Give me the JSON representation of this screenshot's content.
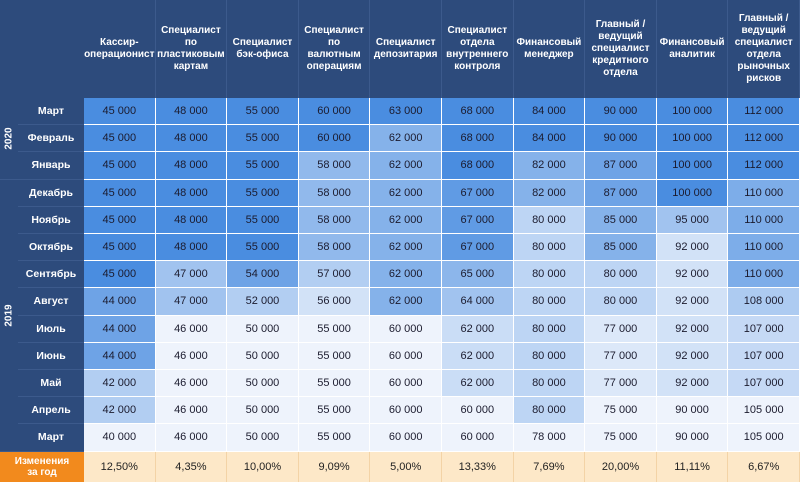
{
  "chart_data": {
    "type": "heatmap",
    "columns": [
      "Кассир-\nоперационист",
      "Специалист\nпо\nпластиковым\nкартам",
      "Специалист\nбэк-офиса",
      "Специалист\nпо валютным\nоперациям",
      "Специалист\nдепозитария",
      "Специалист\nотдела\nвнутреннего\nконтроля",
      "Финансовый\nменеджер",
      "Главный /\nведущий\nспециалист\nкредитного\nотдела",
      "Финансовый\nаналитик",
      "Главный /\nведущий\nспециалист\nотдела\nрыночных\nрисков"
    ],
    "years": [
      {
        "label": "2020",
        "months": [
          "Март",
          "Февраль",
          "Январь"
        ]
      },
      {
        "label": "2019",
        "months": [
          "Декабрь",
          "Ноябрь",
          "Октябрь",
          "Сентябрь",
          "Август",
          "Июль",
          "Июнь",
          "Май",
          "Апрель",
          "Март"
        ]
      }
    ],
    "rows": [
      {
        "month": "Март",
        "values": [
          "45 000",
          "48 000",
          "55 000",
          "60 000",
          "63 000",
          "68 000",
          "84 000",
          "90 000",
          "100 000",
          "112 000"
        ]
      },
      {
        "month": "Февраль",
        "values": [
          "45 000",
          "48 000",
          "55 000",
          "60 000",
          "62 000",
          "68 000",
          "84 000",
          "90 000",
          "100 000",
          "112 000"
        ]
      },
      {
        "month": "Январь",
        "values": [
          "45 000",
          "48 000",
          "55 000",
          "58 000",
          "62 000",
          "68 000",
          "82 000",
          "87 000",
          "100 000",
          "112 000"
        ]
      },
      {
        "month": "Декабрь",
        "values": [
          "45 000",
          "48 000",
          "55 000",
          "58 000",
          "62 000",
          "67 000",
          "82 000",
          "87 000",
          "100 000",
          "110 000"
        ]
      },
      {
        "month": "Ноябрь",
        "values": [
          "45 000",
          "48 000",
          "55 000",
          "58 000",
          "62 000",
          "67 000",
          "80 000",
          "85 000",
          "95 000",
          "110 000"
        ]
      },
      {
        "month": "Октябрь",
        "values": [
          "45 000",
          "48 000",
          "55 000",
          "58 000",
          "62 000",
          "67 000",
          "80 000",
          "85 000",
          "92 000",
          "110 000"
        ]
      },
      {
        "month": "Сентябрь",
        "values": [
          "45 000",
          "47 000",
          "54 000",
          "57 000",
          "62 000",
          "65 000",
          "80 000",
          "80 000",
          "92 000",
          "110 000"
        ]
      },
      {
        "month": "Август",
        "values": [
          "44 000",
          "47 000",
          "52 000",
          "56 000",
          "62 000",
          "64 000",
          "80 000",
          "80 000",
          "92 000",
          "108 000"
        ]
      },
      {
        "month": "Июль",
        "values": [
          "44 000",
          "46 000",
          "50 000",
          "55 000",
          "60 000",
          "62 000",
          "80 000",
          "77 000",
          "92 000",
          "107 000"
        ]
      },
      {
        "month": "Июнь",
        "values": [
          "44 000",
          "46 000",
          "50 000",
          "55 000",
          "60 000",
          "62 000",
          "80 000",
          "77 000",
          "92 000",
          "107 000"
        ]
      },
      {
        "month": "Май",
        "values": [
          "42 000",
          "46 000",
          "50 000",
          "55 000",
          "60 000",
          "62 000",
          "80 000",
          "77 000",
          "92 000",
          "107 000"
        ]
      },
      {
        "month": "Апрель",
        "values": [
          "42 000",
          "46 000",
          "50 000",
          "55 000",
          "60 000",
          "60 000",
          "80 000",
          "75 000",
          "90 000",
          "105 000"
        ]
      },
      {
        "month": "Март",
        "values": [
          "40 000",
          "46 000",
          "50 000",
          "55 000",
          "60 000",
          "60 000",
          "78 000",
          "75 000",
          "90 000",
          "105 000"
        ]
      }
    ],
    "footer": {
      "label": "Изменения\nза год",
      "values": [
        "12,50%",
        "4,35%",
        "10,00%",
        "9,09%",
        "5,00%",
        "13,33%",
        "7,69%",
        "20,00%",
        "11,11%",
        "6,67%"
      ]
    },
    "colors": {
      "header_bg": "#2d4b7c",
      "footer_label_bg": "#f28a1d",
      "footer_bg": "#fde8c8",
      "scale_low": "#eef3fc",
      "scale_high": "#4a8de0"
    }
  }
}
